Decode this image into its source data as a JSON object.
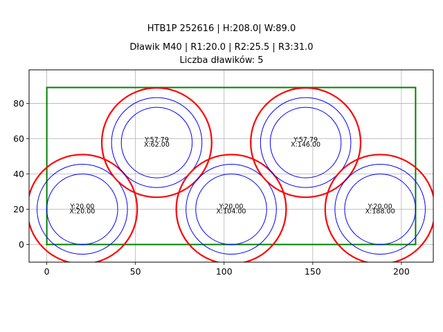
{
  "chart_data": {
    "type": "scatter",
    "title_lines": [
      "HTB1P 252616 | H:208.0| W:89.0",
      "Dławik M40 | R1:20.0 | R2:25.5 | R3:31.0",
      "Liczba dławików: 5"
    ],
    "xlabel": "",
    "ylabel": "",
    "xlim": [
      -10,
      218
    ],
    "ylim": [
      -10,
      99
    ],
    "x_ticks": [
      0,
      50,
      100,
      150,
      200
    ],
    "y_ticks": [
      0,
      20,
      40,
      60,
      80
    ],
    "grid": true,
    "rectangle": {
      "x0": 0,
      "y0": 0,
      "x1": 208,
      "y1": 89,
      "color": "#008000"
    },
    "radii": {
      "r1": 20.0,
      "r2": 25.5,
      "r3": 31.0
    },
    "colors": {
      "r1": "#0000ff",
      "r2": "#0000ff",
      "r3": "#ff0000"
    },
    "points": [
      {
        "x": 20.0,
        "y": 20.0,
        "label_x": "X:20.00",
        "label_y": "Y:20.00"
      },
      {
        "x": 62.0,
        "y": 57.79,
        "label_x": "X:62.00",
        "label_y": "Y:57.79"
      },
      {
        "x": 104.0,
        "y": 20.0,
        "label_x": "X:104.00",
        "label_y": "Y:20.00"
      },
      {
        "x": 146.0,
        "y": 57.79,
        "label_x": "X:146.00",
        "label_y": "Y:57.79"
      },
      {
        "x": 188.0,
        "y": 20.0,
        "label_x": "X:188.00",
        "label_y": "Y:20.00"
      }
    ]
  }
}
